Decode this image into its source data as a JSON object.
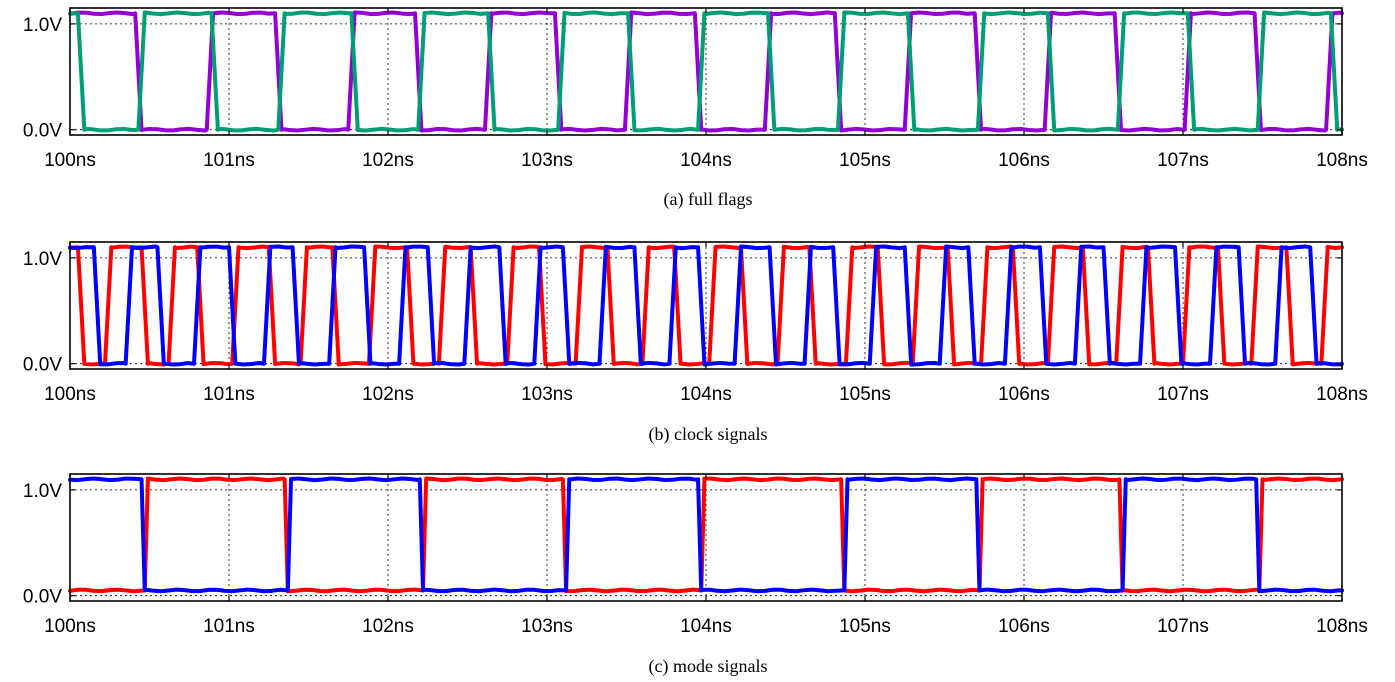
{
  "chart_data": [
    {
      "type": "line",
      "caption": "(a) full flags",
      "x_ticks": [
        "100ns",
        "101ns",
        "102ns",
        "103ns",
        "104ns",
        "105ns",
        "106ns",
        "107ns",
        "108ns"
      ],
      "y_ticks": [
        "0.0V",
        "1.0V"
      ],
      "xlim": [
        100,
        108
      ],
      "ylim": [
        -0.05,
        1.15
      ],
      "grid": true,
      "series": [
        {
          "color": "#9400d3",
          "high": 1.1,
          "low": 0.0,
          "initial": "high",
          "edge_ns": 0.04,
          "transitions": [
            100.41,
            100.86,
            101.29,
            101.75,
            102.17,
            102.61,
            103.05,
            103.49,
            103.93,
            104.37,
            104.81,
            105.25,
            105.69,
            106.13,
            106.57,
            107.01,
            107.45,
            107.9
          ]
        },
        {
          "color": "#009e73",
          "high": 1.1,
          "low": 0.0,
          "initial": "high",
          "edge_ns": 0.04,
          "transitions": [
            100.05,
            100.43,
            100.89,
            101.31,
            101.77,
            102.19,
            102.63,
            103.07,
            103.51,
            103.95,
            104.39,
            104.83,
            105.27,
            105.71,
            106.15,
            106.59,
            107.03,
            107.47,
            107.93
          ]
        }
      ]
    },
    {
      "type": "line",
      "caption": "(b) clock signals",
      "x_ticks": [
        "100ns",
        "101ns",
        "102ns",
        "103ns",
        "104ns",
        "105ns",
        "106ns",
        "107ns",
        "108ns"
      ],
      "y_ticks": [
        "0.0V",
        "1.0V"
      ],
      "xlim": [
        100,
        108
      ],
      "ylim": [
        -0.05,
        1.15
      ],
      "grid": true,
      "series": [
        {
          "color": "#ff0000",
          "high": 1.1,
          "low": 0.0,
          "initial": "high",
          "edge_ns": 0.04,
          "transitions": [
            100.05,
            100.22,
            100.45,
            100.62,
            100.8,
            101.02,
            101.25,
            101.45,
            101.65,
            101.88,
            102.12,
            102.32,
            102.52,
            102.75,
            102.95,
            103.18,
            103.38,
            103.6,
            103.8,
            104.02,
            104.22,
            104.45,
            104.65,
            104.88,
            105.08,
            105.3,
            105.52,
            105.73,
            105.93,
            106.15,
            106.37,
            106.58,
            106.78,
            107.0,
            107.22,
            107.43,
            107.65,
            107.87
          ]
        },
        {
          "color": "#0000ff",
          "high": 1.1,
          "low": 0.0,
          "initial": "high",
          "edge_ns": 0.04,
          "transitions": [
            100.15,
            100.35,
            100.55,
            100.78,
            101.0,
            101.22,
            101.4,
            101.63,
            101.85,
            102.07,
            102.25,
            102.48,
            102.7,
            102.92,
            103.1,
            103.33,
            103.55,
            103.77,
            103.95,
            104.18,
            104.4,
            104.62,
            104.8,
            105.03,
            105.25,
            105.47,
            105.65,
            105.88,
            106.1,
            106.32,
            106.5,
            106.73,
            106.95,
            107.17,
            107.35,
            107.58,
            107.8
          ]
        }
      ]
    },
    {
      "type": "line",
      "caption": "(c) mode signals",
      "x_ticks": [
        "100ns",
        "101ns",
        "102ns",
        "103ns",
        "104ns",
        "105ns",
        "106ns",
        "107ns",
        "108ns"
      ],
      "y_ticks": [
        "0.0V",
        "1.0V"
      ],
      "xlim": [
        100,
        108
      ],
      "ylim": [
        -0.05,
        1.15
      ],
      "grid": true,
      "series": [
        {
          "color": "#ff0000",
          "high": 1.1,
          "low": 0.05,
          "initial": "low",
          "edge_ns": 0.02,
          "transitions": [
            100.47,
            101.35,
            102.22,
            103.1,
            103.97,
            104.85,
            105.72,
            106.6,
            107.48
          ]
        },
        {
          "color": "#0000ff",
          "high": 1.1,
          "low": 0.05,
          "initial": "high",
          "edge_ns": 0.02,
          "transitions": [
            100.45,
            101.37,
            102.2,
            103.12,
            103.95,
            104.87,
            105.7,
            106.62,
            107.46
          ]
        }
      ]
    }
  ]
}
